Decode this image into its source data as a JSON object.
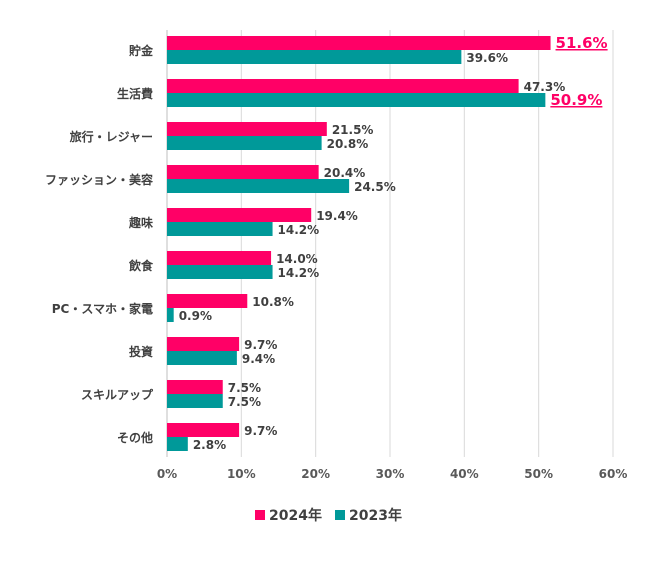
{
  "chart_data": {
    "type": "bar",
    "orientation": "horizontal",
    "categories": [
      "貯金",
      "生活費",
      "旅行・レジャー",
      "ファッション・美容",
      "趣味",
      "飲食",
      "PC・スマホ・家電",
      "投資",
      "スキルアップ",
      "その他"
    ],
    "series": [
      {
        "name": "2024年",
        "color": "#FF0066",
        "values": [
          51.6,
          47.3,
          21.5,
          20.4,
          19.4,
          14.0,
          10.8,
          9.7,
          7.5,
          9.7
        ]
      },
      {
        "name": "2023年",
        "color": "#009999",
        "values": [
          39.6,
          50.9,
          20.8,
          24.5,
          14.2,
          14.2,
          0.9,
          9.4,
          7.5,
          2.8
        ]
      }
    ],
    "highlighted_labels": [
      {
        "category": "貯金",
        "series": "2024年"
      },
      {
        "category": "生活費",
        "series": "2023年"
      }
    ],
    "highlight_color": "#FF0066",
    "xlim": [
      0,
      60
    ],
    "xticks": [
      "0%",
      "10%",
      "20%",
      "30%",
      "40%",
      "50%",
      "60%"
    ],
    "grid": true,
    "legend": "bottom"
  }
}
